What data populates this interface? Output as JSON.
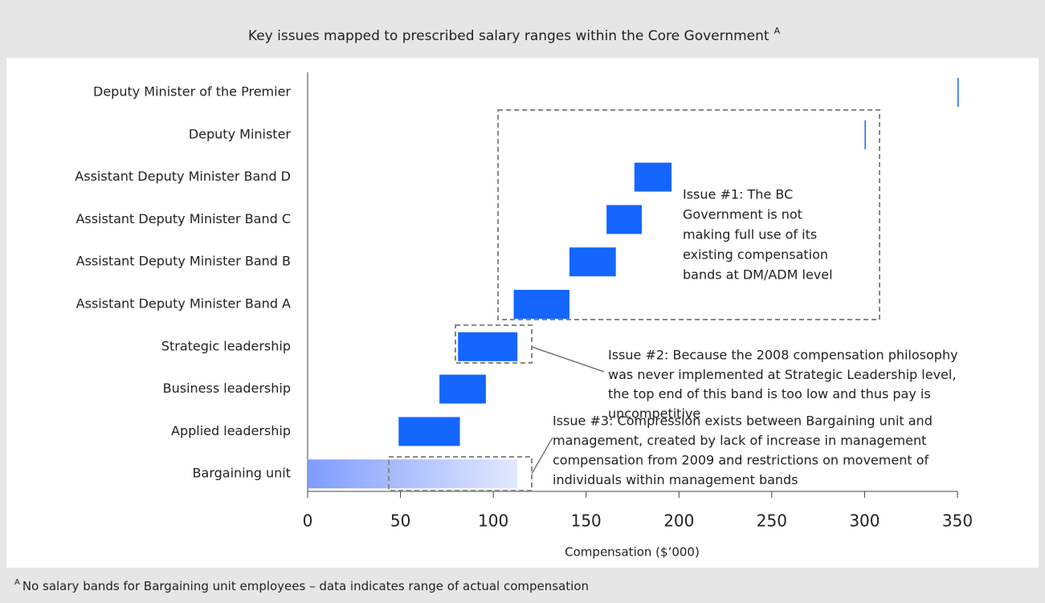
{
  "chart_data": {
    "type": "range_bar",
    "title": "Key issues mapped to prescribed salary ranges within the Core Government",
    "title_marker": "A",
    "categories": [
      "Deputy Minister of the Premier",
      "Deputy Minister",
      "Assistant Deputy Minister Band D",
      "Assistant Deputy Minister Band C",
      "Assistant Deputy Minister Band B",
      "Assistant Deputy Minister Band A",
      "Strategic leadership",
      "Business leadership",
      "Applied leadership",
      "Bargaining unit"
    ],
    "values": [
      [
        350,
        350
      ],
      [
        300,
        300
      ],
      [
        176,
        196
      ],
      [
        161,
        180
      ],
      [
        141,
        166
      ],
      [
        111,
        141
      ],
      [
        81,
        113
      ],
      [
        71,
        96
      ],
      [
        49,
        82
      ],
      [
        0,
        113
      ]
    ],
    "color": "#1466ff",
    "gradient_category": "Bargaining unit",
    "gradient_colors": [
      "#7f9cff",
      "#e2e9ff"
    ],
    "xlabel": "Compensation ($’000)",
    "xlim": [
      0,
      350
    ],
    "xticks": [
      0,
      50,
      100,
      150,
      200,
      250,
      300,
      350
    ],
    "grid": false,
    "annotations": [
      {
        "lines": [
          "Issue #1: The BC",
          "Government is not",
          "making full use of its",
          "existing compensation",
          "bands at DM/ADM level"
        ]
      },
      {
        "lines": [
          "Issue #2: Because the 2008 compensation philosophy",
          "was never implemented at Strategic Leadership level,",
          "the top end of this band is too low and thus pay is",
          "uncompetitive"
        ]
      },
      {
        "lines": [
          "Issue #3: Compression exists between Bargaining unit and",
          "management, created by lack of increase in management",
          "compensation from 2009 and restrictions on movement of",
          "individuals within management bands"
        ]
      }
    ],
    "footnote": "No salary bands for Bargaining unit employees – data indicates range of actual compensation"
  }
}
